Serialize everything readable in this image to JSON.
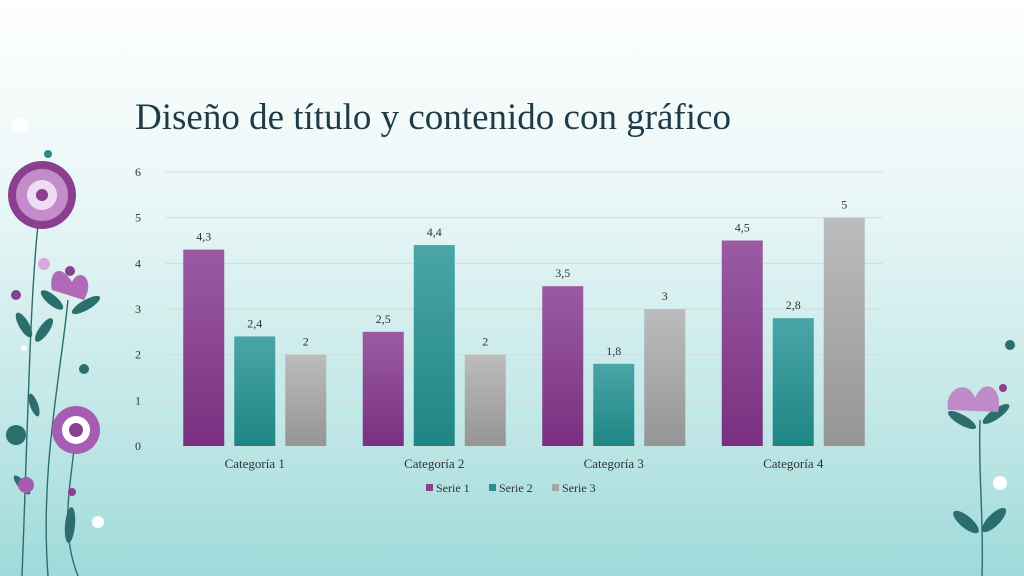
{
  "slide": {
    "title": "Diseño de título y contenido con gráfico"
  },
  "chart_data": {
    "type": "bar",
    "categories": [
      "Categoría 1",
      "Categoría 2",
      "Categoría 3",
      "Categoría 4"
    ],
    "series": [
      {
        "name": "Serie 1",
        "values": [
          4.3,
          2.5,
          3.5,
          4.5
        ],
        "labels": [
          "4,3",
          "2,5",
          "3,5",
          "4,5"
        ],
        "color": "#8a3f8f"
      },
      {
        "name": "Serie 2",
        "values": [
          2.4,
          4.4,
          1.8,
          2.8
        ],
        "labels": [
          "2,4",
          "4,4",
          "1,8",
          "2,8"
        ],
        "color": "#2a9090"
      },
      {
        "name": "Serie 3",
        "values": [
          2,
          2,
          3,
          5
        ],
        "labels": [
          "2",
          "2",
          "3",
          "5"
        ],
        "color": "#a6a6a6"
      }
    ],
    "y_ticks": [
      "0",
      "1",
      "2",
      "3",
      "4",
      "5",
      "6"
    ],
    "ylim": [
      0,
      6
    ],
    "grid": true,
    "legend_position": "bottom"
  },
  "colors": {
    "title": "#1f3b47",
    "flower_purple": "#a660b0",
    "leaf_teal": "#2c6e6e"
  }
}
